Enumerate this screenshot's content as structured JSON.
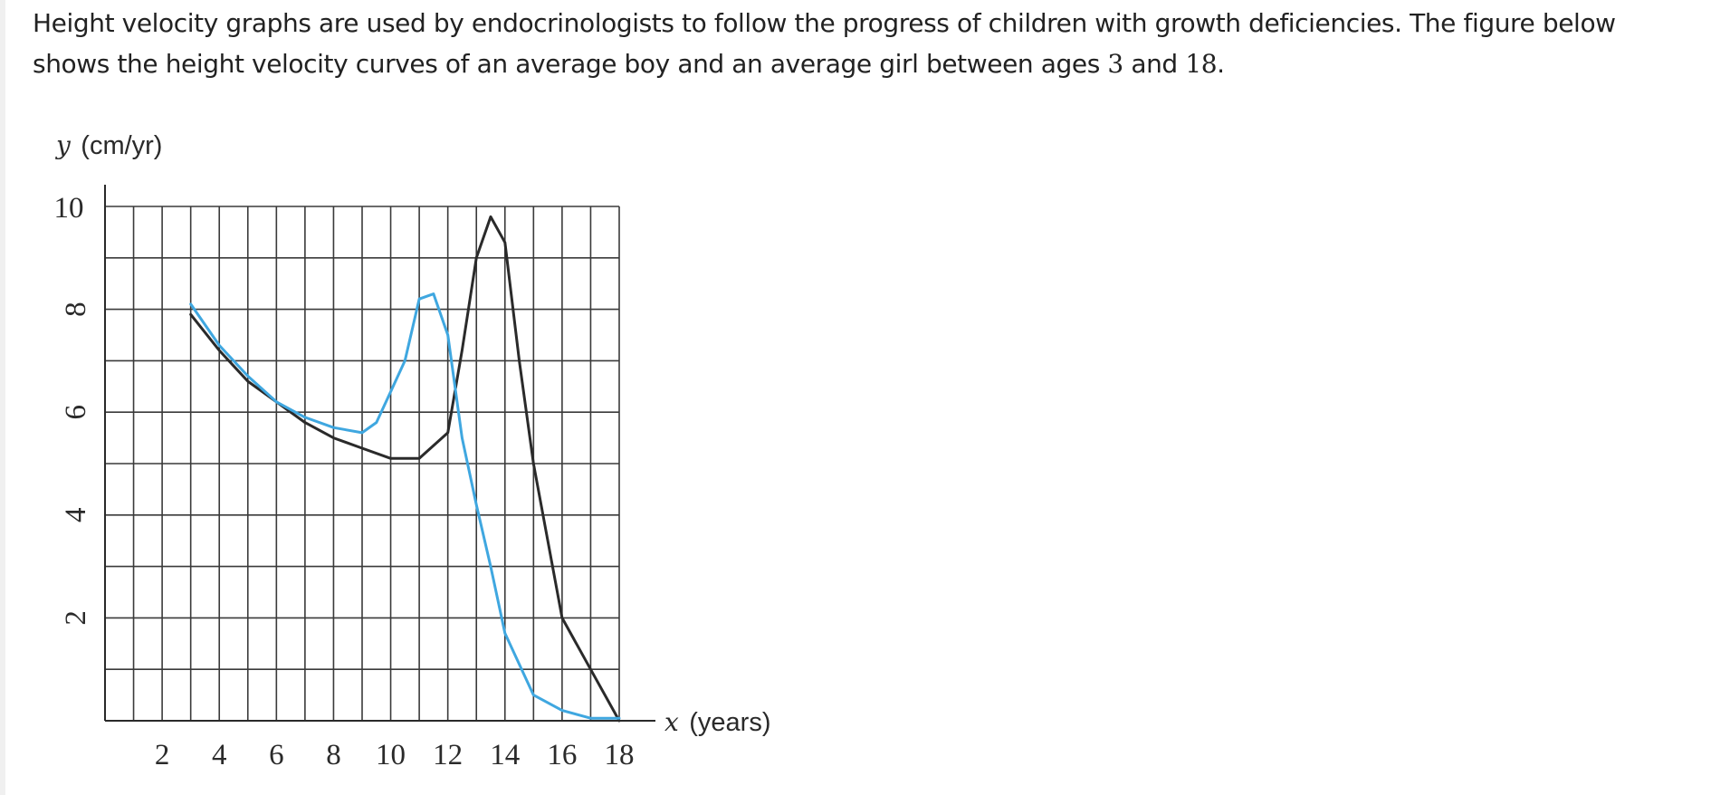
{
  "question": {
    "text_part1": "Height velocity graphs are used by endocrinologists to follow the progress of children with growth deficiencies. The figure below shows the height velocity curves of an average boy and an average girl between ages ",
    "age_start": "3",
    "text_part2": " and ",
    "age_end": "18",
    "text_part3": "."
  },
  "chart_data": {
    "type": "line",
    "title": "",
    "ylabel_var": "y",
    "ylabel_unit": "(cm/yr)",
    "xlabel_var": "x",
    "xlabel_unit": "(years)",
    "xlim": [
      0,
      18
    ],
    "ylim": [
      0,
      10
    ],
    "x_ticks": [
      2,
      4,
      6,
      8,
      10,
      12,
      14,
      16,
      18
    ],
    "y_ticks": [
      2,
      4,
      6,
      8,
      10
    ],
    "grid": true,
    "grid_x_step": 1,
    "grid_y_step": 1,
    "series": [
      {
        "color": "#2a2a2a",
        "points": [
          [
            3,
            7.9
          ],
          [
            4,
            7.2
          ],
          [
            5,
            6.6
          ],
          [
            6,
            6.2
          ],
          [
            7,
            5.8
          ],
          [
            8,
            5.5
          ],
          [
            9,
            5.3
          ],
          [
            10,
            5.1
          ],
          [
            11,
            5.1
          ],
          [
            12,
            5.6
          ],
          [
            12.5,
            7.2
          ],
          [
            13,
            9.0
          ],
          [
            13.5,
            9.8
          ],
          [
            14,
            9.3
          ],
          [
            14.5,
            7.0
          ],
          [
            15,
            5.0
          ],
          [
            16,
            2.0
          ],
          [
            17,
            1.0
          ],
          [
            18,
            0.0
          ]
        ]
      },
      {
        "color": "#3fa7e0",
        "points": [
          [
            3,
            8.1
          ],
          [
            4,
            7.3
          ],
          [
            5,
            6.7
          ],
          [
            6,
            6.2
          ],
          [
            7,
            5.9
          ],
          [
            8,
            5.7
          ],
          [
            9,
            5.6
          ],
          [
            9.5,
            5.8
          ],
          [
            10,
            6.4
          ],
          [
            10.5,
            7.0
          ],
          [
            11,
            8.2
          ],
          [
            11.5,
            8.3
          ],
          [
            12,
            7.5
          ],
          [
            12.5,
            5.5
          ],
          [
            13,
            4.2
          ],
          [
            13.5,
            3.0
          ],
          [
            14,
            1.7
          ],
          [
            15,
            0.5
          ],
          [
            16,
            0.2
          ],
          [
            17,
            0.05
          ],
          [
            18,
            0.05
          ]
        ]
      }
    ]
  }
}
